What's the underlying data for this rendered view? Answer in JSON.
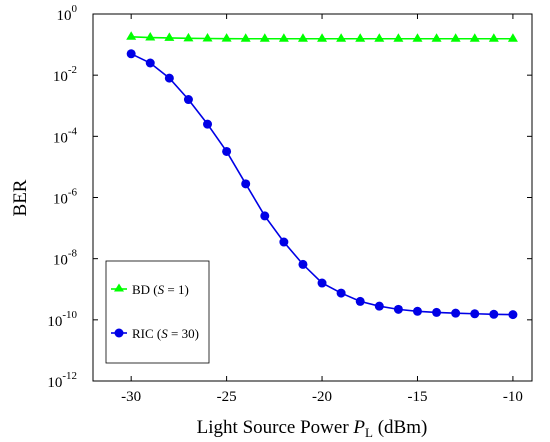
{
  "chart_data": {
    "type": "line",
    "xlabel": {
      "pre": "Light Source Power ",
      "var": "P",
      "sub": "L",
      "post": " (dBm)"
    },
    "ylabel": "BER",
    "x_ticks": [
      "-30",
      "-25",
      "-20",
      "-15",
      "-10"
    ],
    "xlim": [
      -32,
      -9
    ],
    "yscale": "log",
    "ylim_exponent": [
      -12,
      0
    ],
    "y_ticks": [
      {
        "base": "10",
        "exp": "0"
      },
      {
        "base": "10",
        "exp": "-2"
      },
      {
        "base": "10",
        "exp": "-4"
      },
      {
        "base": "10",
        "exp": "-6"
      },
      {
        "base": "10",
        "exp": "-8"
      },
      {
        "base": "10",
        "exp": "-10"
      },
      {
        "base": "10",
        "exp": "-12"
      }
    ],
    "grid": false,
    "legend_position": "bottom-left",
    "x": [
      -30,
      -29,
      -28,
      -27,
      -26,
      -25,
      -24,
      -23,
      -22,
      -21,
      -20,
      -19,
      -18,
      -17,
      -16,
      -15,
      -14,
      -13,
      -12,
      -11,
      -10
    ],
    "series": [
      {
        "legend": {
          "pre": "BD (",
          "var": "S",
          "post": " = 1)"
        },
        "color": "#00ff00",
        "marker": "triangle",
        "values": [
          0.18,
          0.17,
          0.165,
          0.16,
          0.158,
          0.156,
          0.155,
          0.155,
          0.155,
          0.155,
          0.155,
          0.155,
          0.155,
          0.155,
          0.155,
          0.155,
          0.155,
          0.155,
          0.155,
          0.155,
          0.155
        ]
      },
      {
        "legend": {
          "pre": "RIC (",
          "var": "S",
          "post": " = 30)"
        },
        "color": "#0000e6",
        "marker": "circle",
        "values": [
          0.05,
          0.025,
          0.008,
          0.0016,
          0.00025,
          3.2e-05,
          2.8e-06,
          2.5e-07,
          3.5e-08,
          6.5e-09,
          1.6e-09,
          7.5e-10,
          4e-10,
          2.8e-10,
          2.2e-10,
          1.9e-10,
          1.75e-10,
          1.65e-10,
          1.58e-10,
          1.52e-10,
          1.48e-10
        ]
      }
    ]
  }
}
